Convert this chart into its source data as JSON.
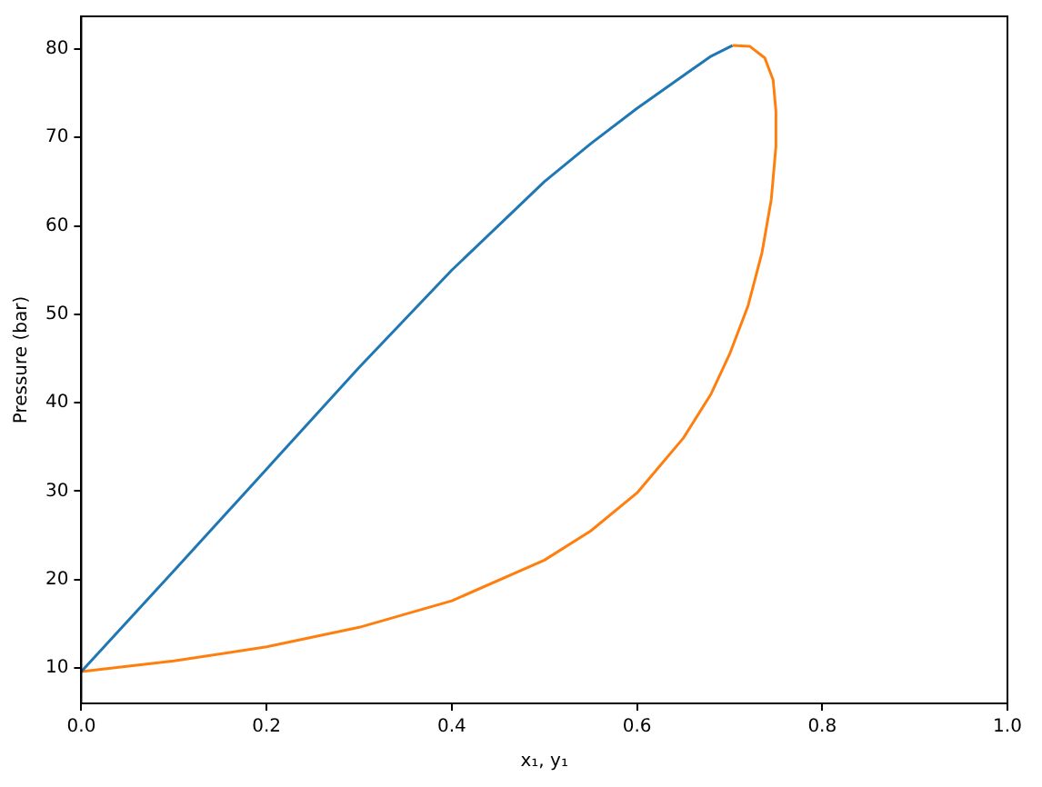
{
  "chart_data": {
    "type": "line",
    "xlabel": "x₁, y₁",
    "ylabel": "Pressure (bar)",
    "xlim": [
      0,
      1
    ],
    "ylim": [
      6.0,
      83.7
    ],
    "xticks": [
      {
        "value": 0,
        "label": "0.0"
      },
      {
        "value": 0.2,
        "label": "0.2"
      },
      {
        "value": 0.4,
        "label": "0.4"
      },
      {
        "value": 0.6,
        "label": "0.6"
      },
      {
        "value": 0.8,
        "label": "0.8"
      },
      {
        "value": 1,
        "label": "1.0"
      }
    ],
    "yticks": [
      10,
      20,
      30,
      40,
      50,
      60,
      70,
      80
    ],
    "grid": false,
    "legend": false,
    "series": [
      {
        "color": "#1f77b4",
        "x": [
          0,
          0.1,
          0.2,
          0.3,
          0.4,
          0.45,
          0.5,
          0.55,
          0.6,
          0.65,
          0.68,
          0.703
        ],
        "values": [
          9.6,
          21,
          32.5,
          44,
          55,
          60,
          65,
          69.3,
          73.3,
          77,
          79.2,
          80.4
        ]
      },
      {
        "color": "#ff7f0e",
        "x": [
          0,
          0.1,
          0.2,
          0.3,
          0.4,
          0.5,
          0.55,
          0.6,
          0.65,
          0.68,
          0.7,
          0.72,
          0.735,
          0.745,
          0.75,
          0.75,
          0.747,
          0.738,
          0.722,
          0.703
        ],
        "values": [
          9.6,
          10.8,
          12.4,
          14.6,
          17.6,
          22.2,
          25.5,
          29.8,
          36,
          41,
          45.5,
          51,
          57,
          63,
          69,
          73,
          76.5,
          79,
          80.3,
          80.4
        ]
      }
    ]
  }
}
